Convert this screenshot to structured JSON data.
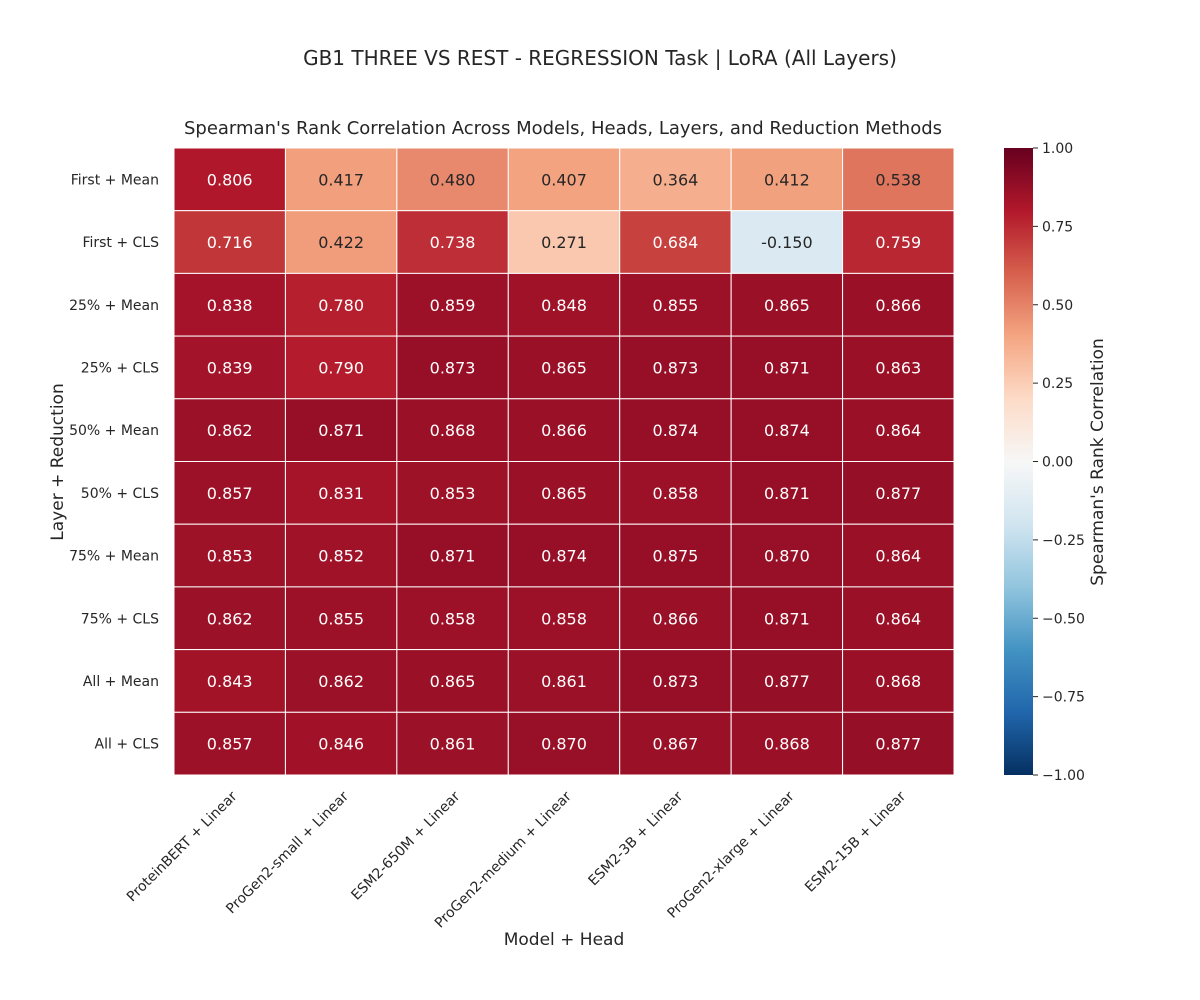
{
  "suptitle": "GB1 THREE VS REST - REGRESSION Task | LoRA (All Layers)",
  "chart_data": {
    "type": "heatmap",
    "title": "Spearman's Rank Correlation Across Models, Heads, Layers, and Reduction Methods",
    "xlabel": "Model + Head",
    "ylabel": "Layer + Reduction",
    "x_categories": [
      "ProteinBERT + Linear",
      "ProGen2-small + Linear",
      "ESM2-650M + Linear",
      "ProGen2-medium + Linear",
      "ESM2-3B + Linear",
      "ProGen2-xlarge + Linear",
      "ESM2-15B + Linear"
    ],
    "y_categories": [
      "First + Mean",
      "First + CLS",
      "25% + Mean",
      "25% + CLS",
      "50% + Mean",
      "50% + CLS",
      "75% + Mean",
      "75% + CLS",
      "All + Mean",
      "All + CLS"
    ],
    "values": [
      [
        0.806,
        0.417,
        0.48,
        0.407,
        0.364,
        0.412,
        0.538
      ],
      [
        0.716,
        0.422,
        0.738,
        0.271,
        0.684,
        -0.15,
        0.759
      ],
      [
        0.838,
        0.78,
        0.859,
        0.848,
        0.855,
        0.865,
        0.866
      ],
      [
        0.839,
        0.79,
        0.873,
        0.865,
        0.873,
        0.871,
        0.863
      ],
      [
        0.862,
        0.871,
        0.868,
        0.866,
        0.874,
        0.874,
        0.864
      ],
      [
        0.857,
        0.831,
        0.853,
        0.865,
        0.858,
        0.871,
        0.877
      ],
      [
        0.853,
        0.852,
        0.871,
        0.874,
        0.875,
        0.87,
        0.864
      ],
      [
        0.862,
        0.855,
        0.858,
        0.858,
        0.866,
        0.871,
        0.864
      ],
      [
        0.843,
        0.862,
        0.865,
        0.861,
        0.873,
        0.877,
        0.868
      ],
      [
        0.857,
        0.846,
        0.861,
        0.87,
        0.867,
        0.868,
        0.877
      ]
    ],
    "value_labels": [
      [
        "0.806",
        "0.417",
        "0.480",
        "0.407",
        "0.364",
        "0.412",
        "0.538"
      ],
      [
        "0.716",
        "0.422",
        "0.738",
        "0.271",
        "0.684",
        "-0.150",
        "0.759"
      ],
      [
        "0.838",
        "0.780",
        "0.859",
        "0.848",
        "0.855",
        "0.865",
        "0.866"
      ],
      [
        "0.839",
        "0.790",
        "0.873",
        "0.865",
        "0.873",
        "0.871",
        "0.863"
      ],
      [
        "0.862",
        "0.871",
        "0.868",
        "0.866",
        "0.874",
        "0.874",
        "0.864"
      ],
      [
        "0.857",
        "0.831",
        "0.853",
        "0.865",
        "0.858",
        "0.871",
        "0.877"
      ],
      [
        "0.853",
        "0.852",
        "0.871",
        "0.874",
        "0.875",
        "0.870",
        "0.864"
      ],
      [
        "0.862",
        "0.855",
        "0.858",
        "0.858",
        "0.866",
        "0.871",
        "0.864"
      ],
      [
        "0.843",
        "0.862",
        "0.865",
        "0.861",
        "0.873",
        "0.877",
        "0.868"
      ],
      [
        "0.857",
        "0.846",
        "0.861",
        "0.870",
        "0.867",
        "0.868",
        "0.877"
      ]
    ],
    "colorbar": {
      "label": "Spearman's Rank Correlation",
      "range": [
        -1.0,
        1.0
      ],
      "ticks": [
        "1.00",
        "0.75",
        "0.50",
        "0.25",
        "0.00",
        "−0.25",
        "−0.50",
        "−0.75",
        "−1.00"
      ],
      "tick_values": [
        1.0,
        0.75,
        0.5,
        0.25,
        0.0,
        -0.25,
        -0.5,
        -0.75,
        -1.0
      ],
      "colormap": "RdBu_r",
      "stops": [
        "#053061",
        "#2166ac",
        "#4393c3",
        "#92c5de",
        "#d1e5f0",
        "#f7f7f7",
        "#fddbc7",
        "#f4a582",
        "#d6604d",
        "#b2182b",
        "#67001f"
      ]
    },
    "legend": "colorbar-right",
    "grid": false
  }
}
